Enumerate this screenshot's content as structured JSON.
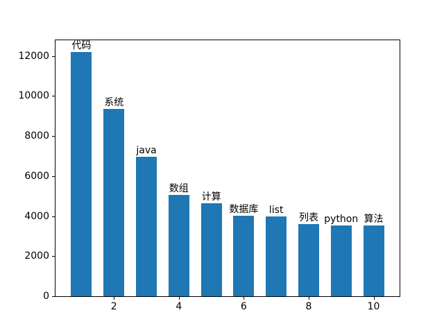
{
  "figure": {
    "background_color": "#ffffff",
    "spine_color": "#000000",
    "text_color": "#000000"
  },
  "chart_data": {
    "type": "bar",
    "title": "",
    "xlabel": "",
    "ylabel": "",
    "categories": [
      "代码",
      "系统",
      "java",
      "数组",
      "计算",
      "数据库",
      "list",
      "列表",
      "python",
      "算法"
    ],
    "x": [
      1,
      2,
      3,
      4,
      5,
      6,
      7,
      8,
      9,
      10
    ],
    "values": [
      12190,
      9350,
      6970,
      5070,
      4650,
      4020,
      3990,
      3600,
      3540,
      3540
    ],
    "bar_annotations": [
      "代码",
      "系统",
      "java",
      "数组",
      "计算",
      "数据库",
      "list",
      "列表",
      "python",
      "算法"
    ],
    "bar_color": "#1f77b4",
    "bar_width": 0.64,
    "xticks": [
      2,
      4,
      6,
      8,
      10
    ],
    "yticks": [
      0,
      2000,
      4000,
      6000,
      8000,
      10000,
      12000
    ],
    "xtick_labels": [
      "2",
      "4",
      "6",
      "8",
      "10"
    ],
    "ytick_labels": [
      "0",
      "2000",
      "4000",
      "6000",
      "8000",
      "10000",
      "12000"
    ],
    "xlim": [
      0.2,
      10.8
    ],
    "ylim": [
      0,
      12790
    ],
    "grid": false,
    "legend": null
  }
}
